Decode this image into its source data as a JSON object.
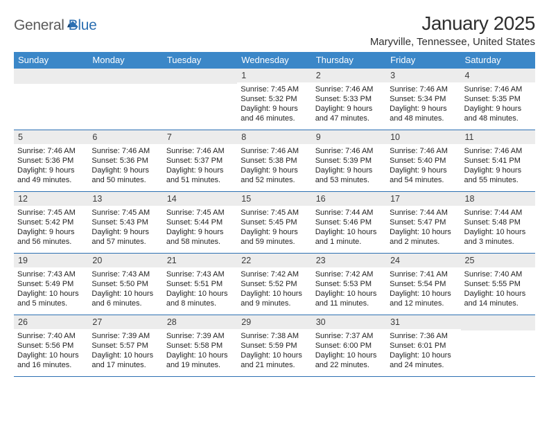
{
  "brand": {
    "part1": "General",
    "part2": "Blue"
  },
  "colors": {
    "brand_blue": "#2b6fb2",
    "header_blue": "#3b87c8",
    "rule_blue": "#2b6fb2",
    "daynum_bg": "#ececec"
  },
  "title": {
    "month": "January 2025",
    "location": "Maryville, Tennessee, United States"
  },
  "dow": [
    "Sunday",
    "Monday",
    "Tuesday",
    "Wednesday",
    "Thursday",
    "Friday",
    "Saturday"
  ],
  "weeks": [
    [
      null,
      null,
      null,
      {
        "n": "1",
        "sr": "Sunrise: 7:45 AM",
        "ss": "Sunset: 5:32 PM",
        "d1": "Daylight: 9 hours",
        "d2": "and 46 minutes."
      },
      {
        "n": "2",
        "sr": "Sunrise: 7:46 AM",
        "ss": "Sunset: 5:33 PM",
        "d1": "Daylight: 9 hours",
        "d2": "and 47 minutes."
      },
      {
        "n": "3",
        "sr": "Sunrise: 7:46 AM",
        "ss": "Sunset: 5:34 PM",
        "d1": "Daylight: 9 hours",
        "d2": "and 48 minutes."
      },
      {
        "n": "4",
        "sr": "Sunrise: 7:46 AM",
        "ss": "Sunset: 5:35 PM",
        "d1": "Daylight: 9 hours",
        "d2": "and 48 minutes."
      }
    ],
    [
      {
        "n": "5",
        "sr": "Sunrise: 7:46 AM",
        "ss": "Sunset: 5:36 PM",
        "d1": "Daylight: 9 hours",
        "d2": "and 49 minutes."
      },
      {
        "n": "6",
        "sr": "Sunrise: 7:46 AM",
        "ss": "Sunset: 5:36 PM",
        "d1": "Daylight: 9 hours",
        "d2": "and 50 minutes."
      },
      {
        "n": "7",
        "sr": "Sunrise: 7:46 AM",
        "ss": "Sunset: 5:37 PM",
        "d1": "Daylight: 9 hours",
        "d2": "and 51 minutes."
      },
      {
        "n": "8",
        "sr": "Sunrise: 7:46 AM",
        "ss": "Sunset: 5:38 PM",
        "d1": "Daylight: 9 hours",
        "d2": "and 52 minutes."
      },
      {
        "n": "9",
        "sr": "Sunrise: 7:46 AM",
        "ss": "Sunset: 5:39 PM",
        "d1": "Daylight: 9 hours",
        "d2": "and 53 minutes."
      },
      {
        "n": "10",
        "sr": "Sunrise: 7:46 AM",
        "ss": "Sunset: 5:40 PM",
        "d1": "Daylight: 9 hours",
        "d2": "and 54 minutes."
      },
      {
        "n": "11",
        "sr": "Sunrise: 7:46 AM",
        "ss": "Sunset: 5:41 PM",
        "d1": "Daylight: 9 hours",
        "d2": "and 55 minutes."
      }
    ],
    [
      {
        "n": "12",
        "sr": "Sunrise: 7:45 AM",
        "ss": "Sunset: 5:42 PM",
        "d1": "Daylight: 9 hours",
        "d2": "and 56 minutes."
      },
      {
        "n": "13",
        "sr": "Sunrise: 7:45 AM",
        "ss": "Sunset: 5:43 PM",
        "d1": "Daylight: 9 hours",
        "d2": "and 57 minutes."
      },
      {
        "n": "14",
        "sr": "Sunrise: 7:45 AM",
        "ss": "Sunset: 5:44 PM",
        "d1": "Daylight: 9 hours",
        "d2": "and 58 minutes."
      },
      {
        "n": "15",
        "sr": "Sunrise: 7:45 AM",
        "ss": "Sunset: 5:45 PM",
        "d1": "Daylight: 9 hours",
        "d2": "and 59 minutes."
      },
      {
        "n": "16",
        "sr": "Sunrise: 7:44 AM",
        "ss": "Sunset: 5:46 PM",
        "d1": "Daylight: 10 hours",
        "d2": "and 1 minute."
      },
      {
        "n": "17",
        "sr": "Sunrise: 7:44 AM",
        "ss": "Sunset: 5:47 PM",
        "d1": "Daylight: 10 hours",
        "d2": "and 2 minutes."
      },
      {
        "n": "18",
        "sr": "Sunrise: 7:44 AM",
        "ss": "Sunset: 5:48 PM",
        "d1": "Daylight: 10 hours",
        "d2": "and 3 minutes."
      }
    ],
    [
      {
        "n": "19",
        "sr": "Sunrise: 7:43 AM",
        "ss": "Sunset: 5:49 PM",
        "d1": "Daylight: 10 hours",
        "d2": "and 5 minutes."
      },
      {
        "n": "20",
        "sr": "Sunrise: 7:43 AM",
        "ss": "Sunset: 5:50 PM",
        "d1": "Daylight: 10 hours",
        "d2": "and 6 minutes."
      },
      {
        "n": "21",
        "sr": "Sunrise: 7:43 AM",
        "ss": "Sunset: 5:51 PM",
        "d1": "Daylight: 10 hours",
        "d2": "and 8 minutes."
      },
      {
        "n": "22",
        "sr": "Sunrise: 7:42 AM",
        "ss": "Sunset: 5:52 PM",
        "d1": "Daylight: 10 hours",
        "d2": "and 9 minutes."
      },
      {
        "n": "23",
        "sr": "Sunrise: 7:42 AM",
        "ss": "Sunset: 5:53 PM",
        "d1": "Daylight: 10 hours",
        "d2": "and 11 minutes."
      },
      {
        "n": "24",
        "sr": "Sunrise: 7:41 AM",
        "ss": "Sunset: 5:54 PM",
        "d1": "Daylight: 10 hours",
        "d2": "and 12 minutes."
      },
      {
        "n": "25",
        "sr": "Sunrise: 7:40 AM",
        "ss": "Sunset: 5:55 PM",
        "d1": "Daylight: 10 hours",
        "d2": "and 14 minutes."
      }
    ],
    [
      {
        "n": "26",
        "sr": "Sunrise: 7:40 AM",
        "ss": "Sunset: 5:56 PM",
        "d1": "Daylight: 10 hours",
        "d2": "and 16 minutes."
      },
      {
        "n": "27",
        "sr": "Sunrise: 7:39 AM",
        "ss": "Sunset: 5:57 PM",
        "d1": "Daylight: 10 hours",
        "d2": "and 17 minutes."
      },
      {
        "n": "28",
        "sr": "Sunrise: 7:39 AM",
        "ss": "Sunset: 5:58 PM",
        "d1": "Daylight: 10 hours",
        "d2": "and 19 minutes."
      },
      {
        "n": "29",
        "sr": "Sunrise: 7:38 AM",
        "ss": "Sunset: 5:59 PM",
        "d1": "Daylight: 10 hours",
        "d2": "and 21 minutes."
      },
      {
        "n": "30",
        "sr": "Sunrise: 7:37 AM",
        "ss": "Sunset: 6:00 PM",
        "d1": "Daylight: 10 hours",
        "d2": "and 22 minutes."
      },
      {
        "n": "31",
        "sr": "Sunrise: 7:36 AM",
        "ss": "Sunset: 6:01 PM",
        "d1": "Daylight: 10 hours",
        "d2": "and 24 minutes."
      },
      null
    ]
  ]
}
